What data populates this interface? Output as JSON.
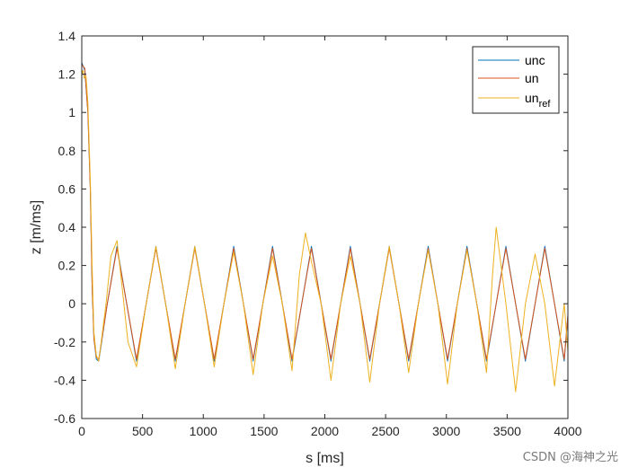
{
  "chart_data": {
    "type": "line",
    "xlabel": "s [ms]",
    "ylabel": "z [m/ms]",
    "xlim": [
      0,
      4000
    ],
    "ylim": [
      -0.6,
      1.4
    ],
    "xticks": [
      "0",
      "500",
      "1000",
      "1500",
      "2000",
      "2500",
      "3000",
      "3500",
      "4000"
    ],
    "yticks": [
      "-0.6",
      "-0.4",
      "-0.2",
      "0",
      "0.2",
      "0.4",
      "0.6",
      "0.8",
      "1",
      "1.2",
      "1.4"
    ],
    "grid": false,
    "legend_position": "top-right",
    "legend": [
      {
        "name": "unc",
        "color": "#0072BD"
      },
      {
        "name": "un",
        "color": "#D95319"
      },
      {
        "name": "un",
        "subscript": "ref",
        "color": "#EDB120"
      }
    ],
    "series": [
      {
        "name": "unc",
        "color": "#0072BD",
        "x": [
          0,
          25,
          50,
          70,
          85,
          100,
          120,
          140,
          210,
          290,
          370,
          450,
          530,
          610,
          690,
          770,
          850,
          930,
          1010,
          1090,
          1170,
          1250,
          1330,
          1410,
          1490,
          1570,
          1650,
          1730,
          1810,
          1890,
          1970,
          2050,
          2130,
          2210,
          2290,
          2370,
          2450,
          2530,
          2610,
          2690,
          2770,
          2850,
          2930,
          3010,
          3090,
          3170,
          3250,
          3330,
          3410,
          3490,
          3570,
          3650,
          3730,
          3810,
          3890,
          3970,
          4000
        ],
        "y": [
          1.26,
          1.22,
          1.0,
          0.6,
          0.1,
          -0.18,
          -0.29,
          -0.3,
          0.0,
          0.3,
          0.0,
          -0.3,
          0.0,
          0.3,
          0.0,
          -0.3,
          0.0,
          0.3,
          0.0,
          -0.3,
          0.0,
          0.3,
          0.0,
          -0.3,
          0.0,
          0.3,
          0.0,
          -0.3,
          0.0,
          0.3,
          0.0,
          -0.3,
          0.0,
          0.3,
          0.0,
          -0.3,
          0.0,
          0.3,
          0.0,
          -0.3,
          0.0,
          0.3,
          0.0,
          -0.3,
          0.0,
          0.3,
          0.0,
          -0.3,
          0.0,
          0.3,
          0.0,
          -0.3,
          0.0,
          0.3,
          0.0,
          -0.3,
          -0.06
        ]
      },
      {
        "name": "un",
        "color": "#D95319",
        "x": [
          0,
          25,
          50,
          70,
          85,
          100,
          120,
          140,
          210,
          290,
          370,
          450,
          530,
          610,
          690,
          770,
          850,
          930,
          1010,
          1090,
          1170,
          1250,
          1330,
          1410,
          1490,
          1570,
          1650,
          1730,
          1810,
          1890,
          1970,
          2050,
          2130,
          2210,
          2290,
          2370,
          2450,
          2530,
          2610,
          2690,
          2770,
          2850,
          2930,
          3010,
          3090,
          3170,
          3250,
          3330,
          3410,
          3490,
          3570,
          3650,
          3730,
          3810,
          3890,
          3970,
          4000
        ],
        "y": [
          1.25,
          1.23,
          1.0,
          0.6,
          0.1,
          -0.18,
          -0.28,
          -0.29,
          0.0,
          0.29,
          0.0,
          -0.29,
          0.0,
          0.29,
          0.0,
          -0.29,
          0.0,
          0.29,
          0.0,
          -0.29,
          0.0,
          0.29,
          0.0,
          -0.29,
          0.0,
          0.29,
          0.0,
          -0.29,
          0.0,
          0.29,
          0.0,
          -0.29,
          0.0,
          0.29,
          0.0,
          -0.29,
          0.0,
          0.29,
          0.0,
          -0.29,
          0.0,
          0.29,
          0.0,
          -0.29,
          0.0,
          0.29,
          0.0,
          -0.29,
          0.0,
          0.29,
          0.0,
          -0.29,
          0.0,
          0.29,
          0.0,
          -0.29,
          -0.06
        ]
      },
      {
        "name": "un_ref",
        "color": "#EDB120",
        "x": [
          0,
          10,
          20,
          35,
          50,
          70,
          85,
          100,
          120,
          140,
          200,
          240,
          290,
          330,
          380,
          450,
          530,
          610,
          690,
          770,
          850,
          930,
          1010,
          1090,
          1170,
          1250,
          1330,
          1410,
          1490,
          1570,
          1650,
          1730,
          1790,
          1840,
          1890,
          1970,
          2050,
          2130,
          2210,
          2290,
          2370,
          2450,
          2530,
          2610,
          2690,
          2770,
          2850,
          2930,
          3010,
          3090,
          3170,
          3250,
          3330,
          3380,
          3410,
          3450,
          3490,
          3570,
          3650,
          3730,
          3810,
          3890,
          3970,
          4000
        ],
        "y": [
          1.2,
          1.22,
          1.18,
          1.19,
          1.05,
          0.65,
          0.2,
          -0.15,
          -0.27,
          -0.3,
          0.0,
          0.25,
          0.33,
          0.1,
          -0.2,
          -0.33,
          0.0,
          0.3,
          0.0,
          -0.34,
          0.0,
          0.3,
          0.0,
          -0.33,
          0.0,
          0.27,
          0.0,
          -0.37,
          0.0,
          0.25,
          0.0,
          -0.35,
          0.15,
          0.37,
          0.22,
          0.0,
          -0.4,
          0.0,
          0.25,
          0.0,
          -0.41,
          0.0,
          0.3,
          0.0,
          -0.36,
          0.0,
          0.28,
          0.0,
          -0.42,
          0.0,
          0.28,
          0.0,
          -0.36,
          0.15,
          0.4,
          0.2,
          0.0,
          -0.46,
          0.0,
          0.26,
          0.0,
          -0.43,
          0.0,
          -0.25
        ]
      }
    ]
  },
  "watermark": "CSDN @海神之光"
}
